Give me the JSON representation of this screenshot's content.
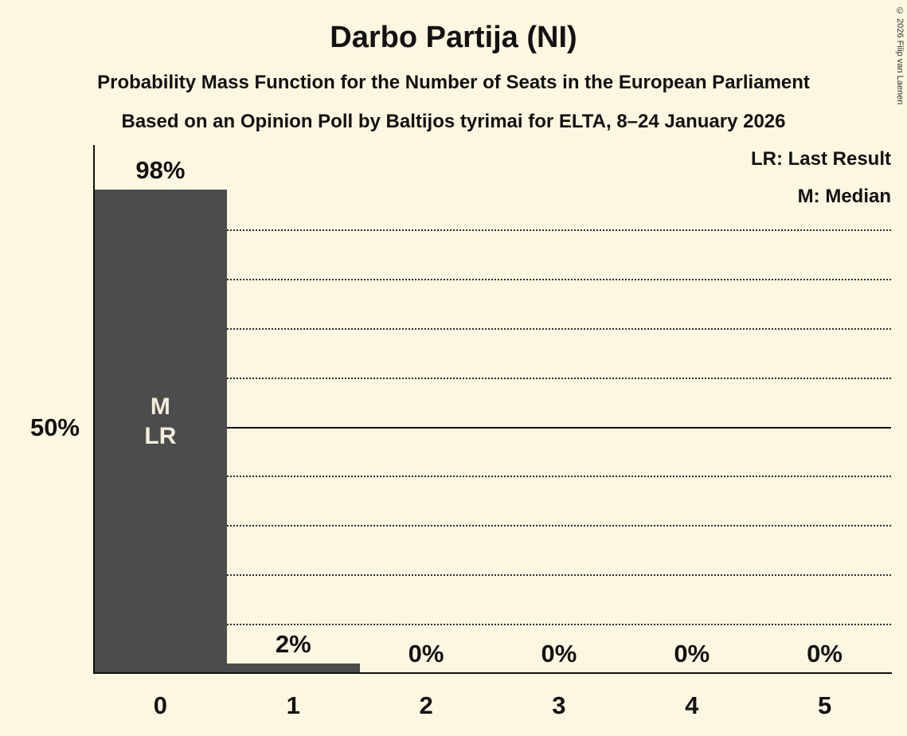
{
  "page": {
    "copyright_notice": "© 2026 Filip van Laenen"
  },
  "chart_data": {
    "type": "bar",
    "title": "Darbo Partija (NI)",
    "subtitle": "Probability Mass Function for the Number of Seats in the European Parliament",
    "source_line": "Based on an Opinion Poll by Baltijos tyrimai for ELTA, 8–24 January 2026",
    "xlabel": "",
    "ylabel": "",
    "categories": [
      "0",
      "1",
      "2",
      "3",
      "4",
      "5"
    ],
    "values_pct": [
      98,
      2,
      0,
      0,
      0,
      0
    ],
    "value_labels": [
      "98%",
      "2%",
      "0%",
      "0%",
      "0%",
      "0%"
    ],
    "ylim": [
      0,
      100
    ],
    "y_reference_label": "50%",
    "gridlines": {
      "dotted_pct": [
        10,
        20,
        30,
        40,
        60,
        70,
        80,
        90
      ],
      "solid_pct": [
        50
      ]
    },
    "legend": [
      {
        "abbr": "LR",
        "label": "LR: Last Result"
      },
      {
        "abbr": "M",
        "label": "M: Median"
      }
    ],
    "bar_annotations": [
      {
        "category_index": 0,
        "lines": [
          "M",
          "LR"
        ]
      }
    ],
    "colors": {
      "background": "#FBF7E0",
      "bar": "#4C4C4C",
      "text": "#121212",
      "bar_label": "#F2EEDC"
    }
  }
}
